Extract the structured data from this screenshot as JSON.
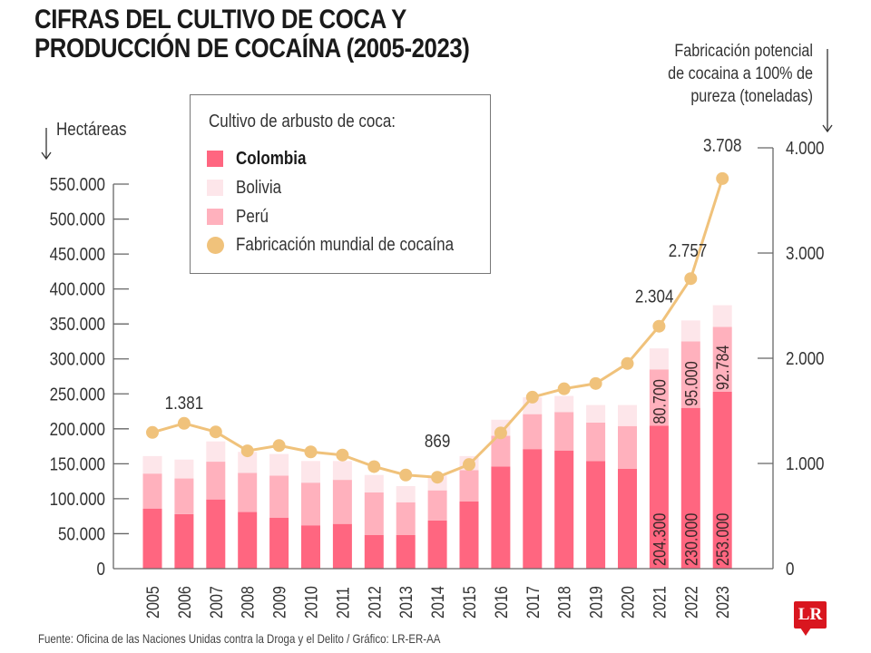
{
  "header": {
    "title_line1": "CIFRAS DEL CULTIVO DE COCA Y",
    "title_line2": "PRODUCCIÓN DE COCAÍNA (2005-2023)"
  },
  "axes": {
    "left_title": "Hectáreas",
    "right_title_lines": [
      "Fabricación potencial",
      "de cocaina a 100% de",
      "pureza (toneladas)"
    ]
  },
  "legend": {
    "title": "Cultivo de arbusto de coca:",
    "items": [
      {
        "label": "Colombia",
        "color": "#ff6680",
        "shape": "square",
        "bold": true
      },
      {
        "label": "Bolivia",
        "color": "#fde6ea",
        "shape": "square",
        "bold": false
      },
      {
        "label": "Perú",
        "color": "#ffb1bd",
        "shape": "square",
        "bold": false
      },
      {
        "label": "Fabricación mundial de cocaína",
        "color": "#f0c27b",
        "shape": "circle",
        "bold": false
      }
    ]
  },
  "footer": {
    "source": "Fuente: Oficina de las Naciones Unidas contra la Droga y el Delito / Gráfico: LR-ER-AA"
  },
  "logo": {
    "text": "LR",
    "color": "#d9161f"
  },
  "chart_data": {
    "type": "bar",
    "stacked": true,
    "title": "CIFRAS DEL CULTIVO DE COCA Y PRODUCCIÓN DE COCAÍNA (2005-2023)",
    "xlabel": "",
    "ylabel": "Hectáreas",
    "y2label": "Fabricación potencial de cocaina a 100% de pureza (toneladas)",
    "ylim": [
      0,
      550000
    ],
    "y2lim": [
      0,
      4000
    ],
    "yticks": [
      "0",
      "50.000",
      "100.000",
      "150.000",
      "200.000",
      "250.000",
      "300.000",
      "350.000",
      "400.000",
      "450.000",
      "500.000",
      "550.000"
    ],
    "ytick_values": [
      0,
      50000,
      100000,
      150000,
      200000,
      250000,
      300000,
      350000,
      400000,
      450000,
      500000,
      550000
    ],
    "y2ticks": [
      "0",
      "1.000",
      "2.000",
      "3.000",
      "4.000"
    ],
    "y2tick_values": [
      0,
      1000,
      2000,
      3000,
      4000
    ],
    "categories": [
      "2005",
      "2006",
      "2007",
      "2008",
      "2009",
      "2010",
      "2011",
      "2012",
      "2013",
      "2014",
      "2015",
      "2016",
      "2017",
      "2018",
      "2019",
      "2020",
      "2021",
      "2022",
      "2023"
    ],
    "series": [
      {
        "name": "Colombia",
        "type": "bar",
        "axis": "left",
        "color": "#ff6680",
        "values": [
          86000,
          78000,
          99000,
          81000,
          73000,
          62000,
          64000,
          48000,
          48000,
          69000,
          96000,
          146000,
          171000,
          169000,
          154000,
          143000,
          204300,
          230000,
          253000
        ]
      },
      {
        "name": "Perú",
        "type": "bar",
        "axis": "left",
        "color": "#ffb1bd",
        "values": [
          50000,
          51000,
          54000,
          56000,
          60000,
          61000,
          63000,
          61000,
          47000,
          43000,
          45000,
          44000,
          50000,
          55000,
          55000,
          61000,
          80700,
          95000,
          92784
        ]
      },
      {
        "name": "Bolivia",
        "type": "bar",
        "axis": "left",
        "color": "#fde6ea",
        "values": [
          25000,
          27000,
          29000,
          30000,
          31000,
          31000,
          27000,
          25000,
          23000,
          21000,
          20000,
          23000,
          24000,
          23000,
          25000,
          30000,
          30000,
          30000,
          31000
        ]
      },
      {
        "name": "Fabricación mundial de cocaína",
        "type": "line",
        "axis": "right",
        "color": "#f0c27b",
        "values": [
          1295,
          1381,
          1300,
          1120,
          1170,
          1110,
          1080,
          970,
          890,
          869,
          990,
          1290,
          1630,
          1710,
          1760,
          1950,
          2304,
          2757,
          3708
        ]
      }
    ],
    "annotations": [
      {
        "series": "Fabricación mundial de cocaína",
        "category": "2006",
        "text": "1.381"
      },
      {
        "series": "Fabricación mundial de cocaína",
        "category": "2014",
        "text": "869"
      },
      {
        "series": "Fabricación mundial de cocaína",
        "category": "2021",
        "text": "2.304"
      },
      {
        "series": "Fabricación mundial de cocaína",
        "category": "2022",
        "text": "2.757"
      },
      {
        "series": "Fabricación mundial de cocaína",
        "category": "2023",
        "text": "3.708"
      },
      {
        "series": "Colombia",
        "category": "2021",
        "text": "204.300"
      },
      {
        "series": "Colombia",
        "category": "2022",
        "text": "230.000"
      },
      {
        "series": "Colombia",
        "category": "2023",
        "text": "253.000"
      },
      {
        "series": "Perú",
        "category": "2021",
        "text": "80.700"
      },
      {
        "series": "Perú",
        "category": "2022",
        "text": "95.000"
      },
      {
        "series": "Perú",
        "category": "2023",
        "text": "92.784"
      }
    ],
    "grid": false,
    "legend_position": "top-left"
  }
}
